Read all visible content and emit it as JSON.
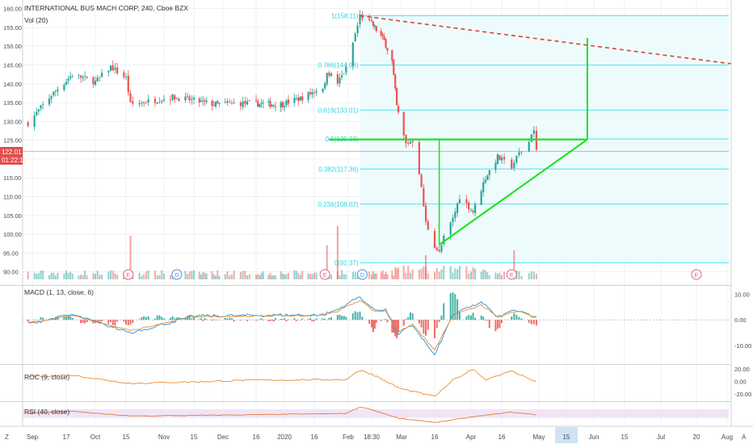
{
  "header": {
    "title": "INTERNATIONAL BUS MACH CORP, 240, Cboe BZX",
    "volume_label": "Vol (20)"
  },
  "price_badge": {
    "price": "122.01",
    "countdown": "01:22:18"
  },
  "colors": {
    "up": "#26a69a",
    "down": "#ef5350",
    "fib": "#4ee3ef",
    "pattern": "#25e025",
    "trend": "#d9472b",
    "macd": "#2a8ed8",
    "signal": "#f08c2c",
    "roc": "#f08c2c",
    "rsi": "#e07b39",
    "rsi_band": "#f1e4f7",
    "badge": "#e14e4e"
  },
  "chart_data": [
    {
      "type": "candlestick",
      "name": "price",
      "y_ticks": [
        "160.00",
        "155.00",
        "150.00",
        "145.00",
        "140.00",
        "135.00",
        "130.00",
        "125.00",
        "120.00",
        "115.00",
        "110.00",
        "105.00",
        "100.00",
        "95.00",
        "90.00"
      ],
      "ylim": [
        88,
        161
      ],
      "key_points": [
        {
          "date": "2019-08-30",
          "close": 129.5
        },
        {
          "date": "2019-09-10",
          "close": 137
        },
        {
          "date": "2019-09-20",
          "close": 142.5
        },
        {
          "date": "2019-10-01",
          "close": 140.5
        },
        {
          "date": "2019-10-08",
          "close": 144.5
        },
        {
          "date": "2019-10-15",
          "close": 141.5
        },
        {
          "date": "2019-10-17",
          "close": 134.5
        },
        {
          "date": "2019-11-05",
          "close": 136.5
        },
        {
          "date": "2019-11-26",
          "close": 134.5
        },
        {
          "date": "2019-12-10",
          "close": 134.8
        },
        {
          "date": "2019-12-30",
          "close": 134.5
        },
        {
          "date": "2020-01-10",
          "close": 136.3
        },
        {
          "date": "2020-01-21",
          "close": 139.5
        },
        {
          "date": "2020-01-22",
          "close": 143.5
        },
        {
          "date": "2020-01-27",
          "close": 140.2
        },
        {
          "date": "2020-01-31",
          "close": 144
        },
        {
          "date": "2020-02-05",
          "close": 155.5
        },
        {
          "date": "2020-02-06",
          "close": 158.1
        },
        {
          "date": "2020-02-12",
          "close": 155.5
        },
        {
          "date": "2020-02-19",
          "close": 151.5
        },
        {
          "date": "2020-02-24",
          "close": 146
        },
        {
          "date": "2020-02-27",
          "close": 134
        },
        {
          "date": "2020-03-03",
          "close": 124
        },
        {
          "date": "2020-03-06",
          "close": 125
        },
        {
          "date": "2020-03-09",
          "close": 116.5
        },
        {
          "date": "2020-03-12",
          "close": 103
        },
        {
          "date": "2020-03-16",
          "close": 97
        },
        {
          "date": "2020-03-18",
          "close": 95
        },
        {
          "date": "2020-03-20",
          "close": 99
        },
        {
          "date": "2020-03-24",
          "close": 104
        },
        {
          "date": "2020-03-27",
          "close": 110
        },
        {
          "date": "2020-04-02",
          "close": 106
        },
        {
          "date": "2020-04-08",
          "close": 115
        },
        {
          "date": "2020-04-14",
          "close": 120.5
        },
        {
          "date": "2020-04-20",
          "close": 118
        },
        {
          "date": "2020-04-23",
          "close": 121.5
        },
        {
          "date": "2020-04-27",
          "close": 124.5
        },
        {
          "date": "2020-04-28",
          "close": 127
        },
        {
          "date": "2020-04-29",
          "close": 127.5
        },
        {
          "date": "2020-04-30",
          "close": 122
        }
      ],
      "fib_levels": [
        {
          "ratio": 1,
          "price": 158.11,
          "label": "1(158.11)"
        },
        {
          "ratio": 0.786,
          "price": 144.98,
          "label": "0.786(144.98)"
        },
        {
          "ratio": 0.618,
          "price": 133.01,
          "label": "0.618(133.01)"
        },
        {
          "ratio": 0.5,
          "price": 125.33,
          "label": "0.5(125.33)"
        },
        {
          "ratio": 0.382,
          "price": 117.36,
          "label": "0.382(117.36)"
        },
        {
          "ratio": 0.236,
          "price": 108.02,
          "label": "0.236(108.02)"
        },
        {
          "ratio": 0,
          "price": 92.37,
          "label": "0(92.37)"
        }
      ],
      "drawings": {
        "trendline": [
          {
            "date": "2020-02-06",
            "price": 158.1
          },
          {
            "date": "2020-08-04",
            "price": 145.2
          }
        ],
        "resistance": [
          {
            "date": "2020-01-23",
            "price": 125.2
          },
          {
            "date": "2020-05-28",
            "price": 125.2
          }
        ],
        "support": [
          {
            "date": "2020-03-18",
            "price": 97.2
          },
          {
            "date": "2020-05-28",
            "price": 125.2
          }
        ],
        "left_leg": [
          {
            "date": "2020-03-18",
            "price": 97.2
          },
          {
            "date": "2020-03-18",
            "price": 125.2
          }
        ],
        "target_leg": [
          {
            "date": "2020-05-28",
            "price": 125.2
          },
          {
            "date": "2020-05-28",
            "price": 152.2
          }
        ]
      }
    },
    {
      "type": "bar",
      "name": "volume",
      "legend": "Vol (20)",
      "spikes": [
        {
          "date": "2019-10-17",
          "value": 4.5
        },
        {
          "date": "2020-01-22",
          "value": 3.5
        },
        {
          "date": "2020-01-27",
          "value": 5.5
        },
        {
          "date": "2020-03-12",
          "value": 2.5
        },
        {
          "date": "2020-04-21",
          "value": 3.0
        }
      ]
    },
    {
      "type": "line",
      "name": "macd",
      "legend": "MACD (1, 13, close, 6)",
      "y_ticks": [
        "10.00",
        "0.00",
        "-10.00"
      ],
      "ylim": [
        -17,
        13
      ],
      "key_points": [
        {
          "date": "2019-08-30",
          "value": -1.5
        },
        {
          "date": "2019-09-20",
          "value": 2
        },
        {
          "date": "2019-10-17",
          "value": -5
        },
        {
          "date": "2019-11-15",
          "value": 1.5
        },
        {
          "date": "2020-01-20",
          "value": 2
        },
        {
          "date": "2020-01-27",
          "value": 4
        },
        {
          "date": "2020-02-06",
          "value": 9
        },
        {
          "date": "2020-02-12",
          "value": 4
        },
        {
          "date": "2020-02-20",
          "value": 4
        },
        {
          "date": "2020-02-28",
          "value": -6
        },
        {
          "date": "2020-03-06",
          "value": -2
        },
        {
          "date": "2020-03-16",
          "value": -14
        },
        {
          "date": "2020-03-24",
          "value": 2
        },
        {
          "date": "2020-04-06",
          "value": 7
        },
        {
          "date": "2020-04-14",
          "value": 1
        },
        {
          "date": "2020-04-22",
          "value": 4
        },
        {
          "date": "2020-04-30",
          "value": 1
        }
      ]
    },
    {
      "type": "line",
      "name": "roc",
      "legend": "ROC (9, close)",
      "y_ticks": [
        "20.00",
        "0.00",
        "-20.00"
      ],
      "ylim": [
        -30,
        25
      ],
      "key_points": [
        {
          "date": "2019-08-30",
          "value": 8
        },
        {
          "date": "2019-09-20",
          "value": 10
        },
        {
          "date": "2019-10-17",
          "value": -3
        },
        {
          "date": "2019-12-15",
          "value": 2
        },
        {
          "date": "2020-01-31",
          "value": 3
        },
        {
          "date": "2020-02-06",
          "value": 18
        },
        {
          "date": "2020-02-14",
          "value": 8
        },
        {
          "date": "2020-02-28",
          "value": -10
        },
        {
          "date": "2020-03-16",
          "value": -24
        },
        {
          "date": "2020-03-24",
          "value": 2
        },
        {
          "date": "2020-04-02",
          "value": 20
        },
        {
          "date": "2020-04-08",
          "value": 3
        },
        {
          "date": "2020-04-20",
          "value": 16
        },
        {
          "date": "2020-04-30",
          "value": 0
        }
      ]
    },
    {
      "type": "line",
      "name": "rsi",
      "legend": "RSI (40, close)",
      "ylim": [
        25,
        80
      ],
      "band": [
        45,
        65
      ],
      "key_points": [
        {
          "date": "2019-08-30",
          "value": 56
        },
        {
          "date": "2019-09-20",
          "value": 60
        },
        {
          "date": "2019-10-17",
          "value": 49
        },
        {
          "date": "2019-12-15",
          "value": 52
        },
        {
          "date": "2020-01-31",
          "value": 55
        },
        {
          "date": "2020-02-06",
          "value": 70
        },
        {
          "date": "2020-02-28",
          "value": 44
        },
        {
          "date": "2020-03-16",
          "value": 34
        },
        {
          "date": "2020-04-02",
          "value": 47
        },
        {
          "date": "2020-04-20",
          "value": 58
        },
        {
          "date": "2020-04-30",
          "value": 52
        }
      ]
    }
  ],
  "time_axis": {
    "labels": [
      "Sep",
      "17",
      "Oct",
      "15",
      "Nov",
      "15",
      "Dec",
      "16",
      "2020",
      "16",
      "Feb",
      "18:30",
      "Mar",
      "16",
      "Apr",
      "16",
      "May",
      "15",
      "Jun",
      "15",
      "Jul",
      "20",
      "Aug"
    ],
    "dates": [
      "2019-09-01",
      "2019-09-17",
      "2019-10-01",
      "2019-10-15",
      "2019-11-01",
      "2019-11-15",
      "2019-12-01",
      "2019-12-16",
      "2020-01-01",
      "2020-01-16",
      "2020-02-01",
      "2020-02-11",
      "2020-03-01",
      "2020-03-16",
      "2020-04-01",
      "2020-04-16",
      "2020-05-01",
      "2020-05-15",
      "2020-06-01",
      "2020-06-15",
      "2020-07-01",
      "2020-07-20",
      "2020-08-01"
    ],
    "highlight_index": 17
  },
  "event_markers": [
    {
      "date": "2019-10-16",
      "letter": "E"
    },
    {
      "date": "2019-11-07",
      "letter": "D"
    },
    {
      "date": "2020-01-21",
      "letter": "E"
    },
    {
      "date": "2020-02-07",
      "letter": "D"
    },
    {
      "date": "2020-04-20",
      "letter": "E"
    },
    {
      "date": "2020-07-20",
      "letter": "E"
    }
  ],
  "corner_labels": {
    "bottom_left": "Z",
    "bottom_right": "A"
  }
}
